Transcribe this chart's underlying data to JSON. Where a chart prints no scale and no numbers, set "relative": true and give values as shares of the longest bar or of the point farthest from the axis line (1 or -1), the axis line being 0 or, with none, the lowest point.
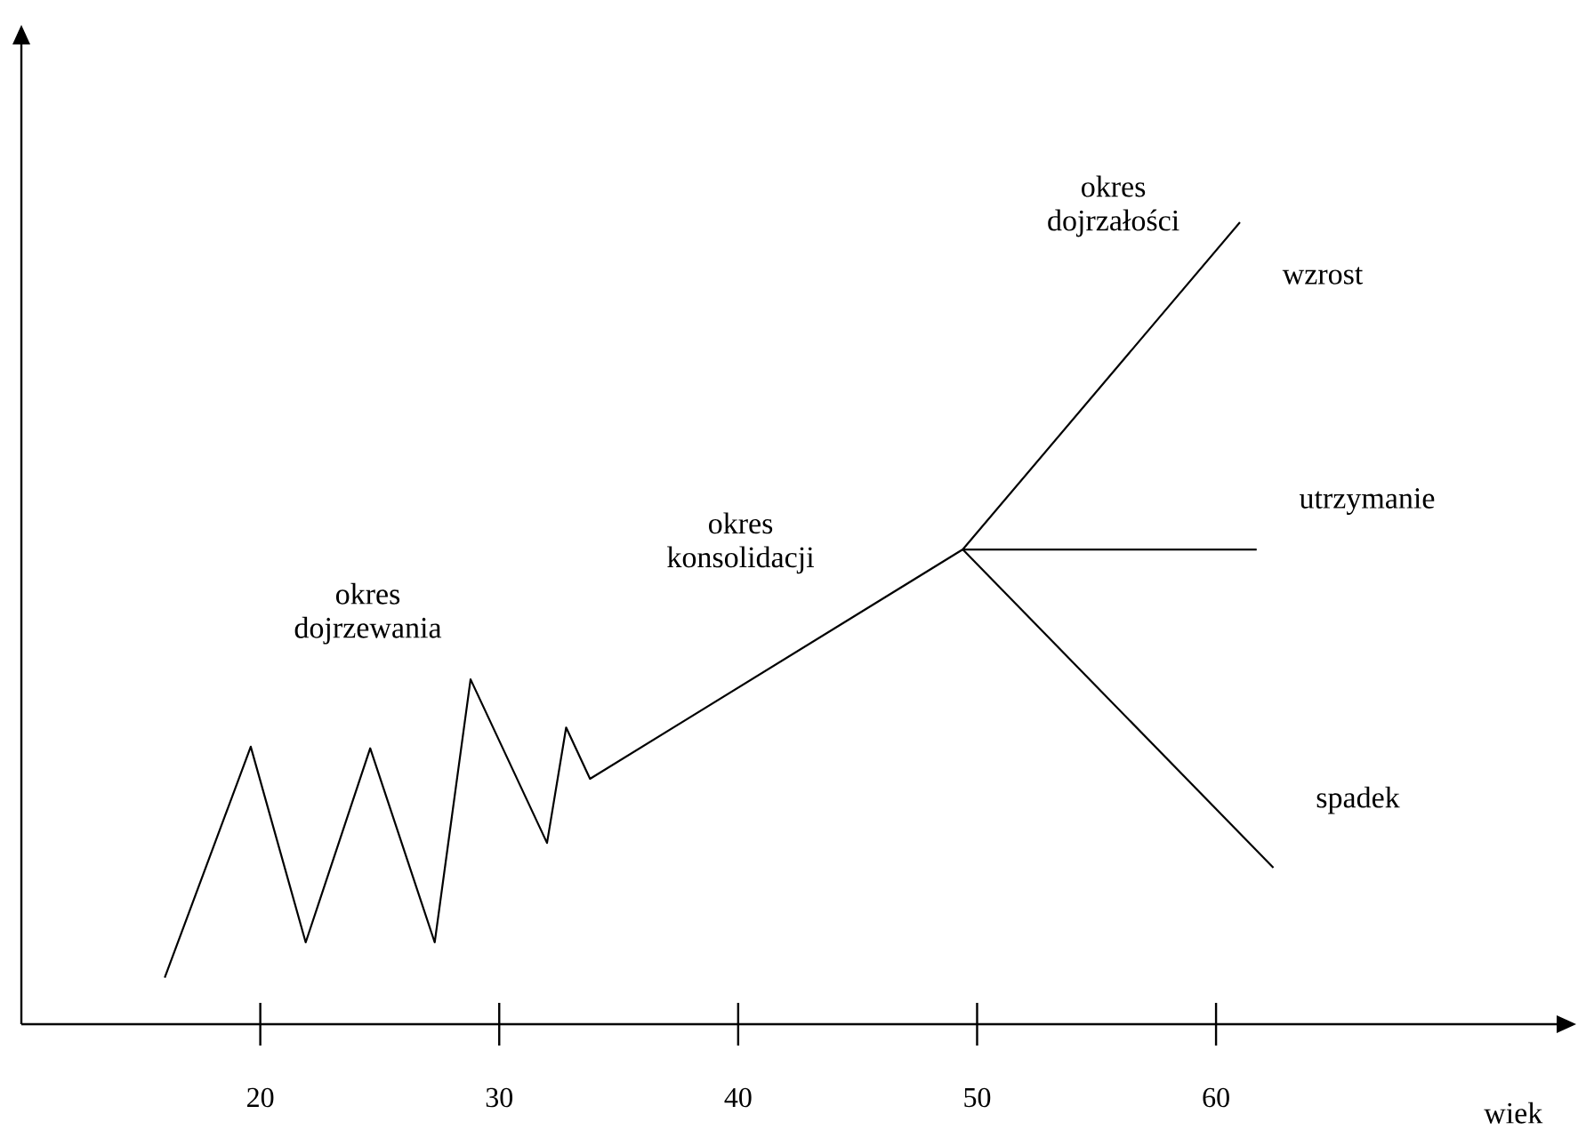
{
  "chart_data": {
    "type": "line",
    "relative": true,
    "xlabel": "wiek",
    "xlim": [
      10,
      75
    ],
    "xticks": [
      20,
      30,
      40,
      50,
      60
    ],
    "tick_labels": "x",
    "annotations": [
      "okres dojrzewania",
      "okres konsolidacji",
      "okres dojrzałości"
    ],
    "series": [
      {
        "name": "wzrost",
        "color": "#000000",
        "x": [
          16.0,
          19.6,
          21.9,
          24.6,
          27.3,
          28.8,
          32.0,
          32.8,
          33.8,
          49.4,
          61.0
        ],
        "values": [
          0.058,
          0.346,
          0.102,
          0.344,
          0.102,
          0.43,
          0.226,
          0.37,
          0.306,
          0.592,
          1.0
        ]
      },
      {
        "name": "utrzymanie",
        "color": "#000000",
        "x": [
          49.4,
          61.7
        ],
        "values": [
          0.592,
          0.592
        ]
      },
      {
        "name": "spadek",
        "color": "#000000",
        "x": [
          49.4,
          62.4
        ],
        "values": [
          0.592,
          0.195
        ]
      }
    ]
  }
}
